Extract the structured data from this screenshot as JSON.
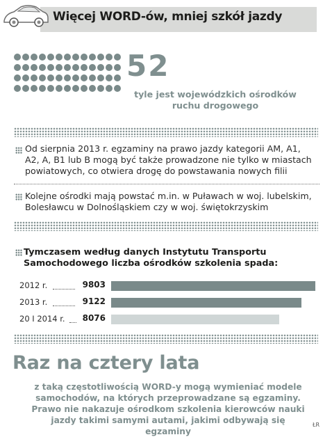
{
  "header": {
    "title": "Więcej WORD-ów, mniej szkół jazdy",
    "icon": "car-icon"
  },
  "stat": {
    "number": "52",
    "caption": "tyle jest wojewódzkich ośrodków ruchu drogowego",
    "dot_count": 52
  },
  "paragraphs": [
    {
      "text": "Od sierpnia 2013 r. egzaminy na prawo jazdy kategorii AM, A1, A2, A, B1 lub B mogą być także prowadzone nie tylko w miastach powiatowych, co otwiera drogę do powstawania nowych filii"
    },
    {
      "text": "Kolejne ośrodki mają powstać m.in. w Puławach w woj. lubelskim, Bolesławcu w Dolnośląskiem czy w woj. świętokrzyskim"
    }
  ],
  "bars_section": {
    "heading": "Tymczasem według danych Instytutu Transportu Samochodowego liczba ośrodków szkolenia spada:"
  },
  "chart_data": {
    "type": "bar",
    "orientation": "horizontal",
    "categories": [
      "2012 r.",
      "2013 r.",
      "20 I 2014 r."
    ],
    "values": [
      9803,
      9122,
      8076
    ],
    "value_labels": [
      "9803",
      "9122",
      "8076"
    ],
    "colors": [
      "#7a8a8a",
      "#7a8a8a",
      "#cfd6d6"
    ]
  },
  "footer": {
    "heading": "Raz na cztery lata",
    "text": "z taką częstotliwością WORD-y mogą wymieniać modele samochodów, na których przeprowadzane są egzaminy. Prawo nie nakazuje ośrodkom szkolenia kierowców nauki jazdy takimi samymi autami, jakimi odbywają się egzaminy",
    "credit": "ŁR"
  }
}
